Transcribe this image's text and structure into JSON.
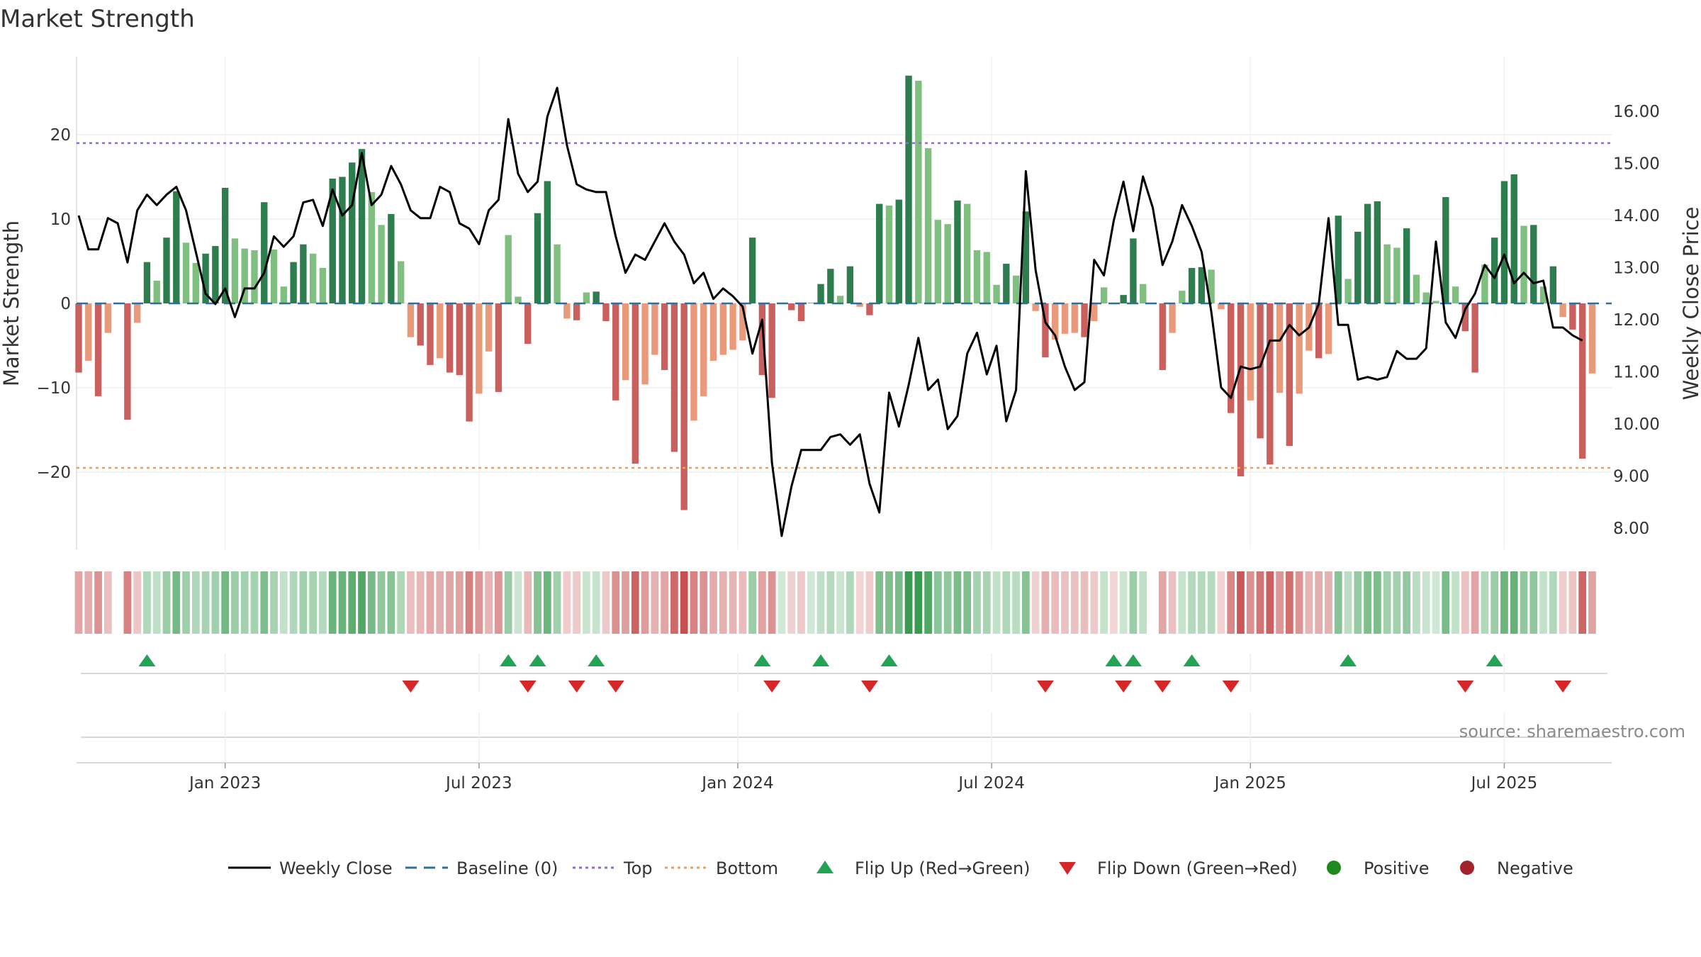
{
  "chart_data": {
    "type": "bar",
    "title": "Market Strength",
    "source": "source: sharemaestro.com",
    "left_axis": {
      "label": "Market Strength",
      "ticks": [
        20,
        10,
        0,
        -10,
        -20
      ],
      "tick_labels": [
        "20",
        "10",
        "0",
        "−10",
        "−20"
      ],
      "range": [
        -29,
        29
      ]
    },
    "right_axis": {
      "label": "Weekly Close Price",
      "ticks": [
        16,
        15,
        14,
        13,
        12,
        11,
        10,
        9,
        8
      ],
      "tick_labels": [
        "16.00",
        "15.00",
        "14.00",
        "13.00",
        "12.00",
        "11.00",
        "10.00",
        "9.00",
        "8.00"
      ],
      "range": [
        7.3,
        16.9
      ]
    },
    "x_axis": {
      "labels": [
        "Jan 2023",
        "Jul 2023",
        "Jan 2024",
        "Jul 2024",
        "Jan 2025",
        "Jul 2025"
      ],
      "label_weeks": [
        15,
        41,
        67.5,
        93.5,
        120,
        146
      ]
    },
    "levels": {
      "top": 19,
      "bottom": -19.5,
      "baseline": 0
    },
    "weeks": 158,
    "strength": [
      -8.2,
      -6.8,
      -11,
      -3.5,
      0,
      -13.8,
      -2.3,
      4.9,
      2.7,
      7.8,
      13.3,
      7.2,
      4.8,
      5.9,
      6.8,
      13.7,
      7.7,
      6.5,
      6.3,
      12,
      6.4,
      2,
      4.9,
      7,
      5.9,
      4.2,
      14.8,
      15,
      16.7,
      18.3,
      13.2,
      9.3,
      10.6,
      5,
      -4,
      -5,
      -7.3,
      -6.5,
      -8.2,
      -8.5,
      -14,
      -10.7,
      -5.7,
      -10.5,
      8.1,
      0.8,
      -4.8,
      10.7,
      14.5,
      7,
      -1.8,
      -2,
      1.3,
      1.4,
      -2.1,
      -11.5,
      -9.1,
      -19,
      -9.6,
      -6.1,
      -7.9,
      -17.6,
      -24.5,
      -13.9,
      -11,
      -6.8,
      -6.1,
      -5.5,
      -4.4,
      7.8,
      -8.5,
      -11.2,
      0.1,
      -0.8,
      -2.1,
      0.1,
      2.3,
      4.1,
      0.9,
      4.4,
      -0.4,
      -1.4,
      11.8,
      11.6,
      12.3,
      27,
      26.4,
      18.4,
      9.9,
      9.4,
      12.2,
      11.8,
      6.3,
      6.1,
      2.2,
      4.7,
      3.3,
      10.9,
      -0.9,
      -6.4,
      -4.3,
      -3.6,
      -3.5,
      -4,
      -2.1,
      1.9,
      -0.1,
      1,
      7.7,
      2.3,
      0,
      -7.9,
      -3.5,
      1.5,
      4.2,
      4.3,
      4,
      -0.7,
      -13,
      -20.5,
      -11.5,
      -16,
      -19.1,
      -10.6,
      -16.9,
      -10.7,
      -5.6,
      -6.5,
      -6,
      10.4,
      2.9,
      8.5,
      11.8,
      12.1,
      7,
      6.6,
      8.9,
      3.4,
      1.3,
      0.3,
      12.6,
      2,
      -3.3,
      -8.2,
      4.6,
      7.8,
      14.5,
      15.3,
      9.2,
      9.3,
      2,
      4.4,
      -1.6,
      -3.1,
      -18.4,
      -8.3
    ],
    "weekly_close": [
      14,
      13.35,
      13.35,
      13.95,
      13.85,
      13.1,
      14.1,
      14.4,
      14.2,
      14.4,
      14.55,
      14.1,
      13.3,
      12.5,
      12.3,
      12.6,
      12.05,
      12.6,
      12.6,
      12.9,
      13.6,
      13.4,
      13.6,
      14.25,
      14.3,
      13.8,
      14.5,
      14,
      14.2,
      15.2,
      14.2,
      14.4,
      14.95,
      14.6,
      14.1,
      13.95,
      13.95,
      14.55,
      14.45,
      13.85,
      13.75,
      13.45,
      14.1,
      14.3,
      15.85,
      14.8,
      14.45,
      14.65,
      15.9,
      16.45,
      15.35,
      14.6,
      14.5,
      14.45,
      14.45,
      13.6,
      12.9,
      13.25,
      13.15,
      13.5,
      13.85,
      13.5,
      13.25,
      12.7,
      12.9,
      12.4,
      12.6,
      12.45,
      12.25,
      11.35,
      12,
      9.25,
      7.85,
      8.8,
      9.5,
      9.5,
      9.5,
      9.75,
      9.8,
      9.6,
      9.8,
      8.85,
      8.3,
      10.6,
      9.95,
      10.75,
      11.65,
      10.65,
      10.85,
      9.9,
      10.15,
      11.35,
      11.75,
      10.95,
      11.5,
      10.05,
      10.65,
      14.85,
      12.95,
      11.95,
      11.7,
      11.1,
      10.65,
      10.8,
      13.15,
      12.85,
      13.9,
      14.65,
      13.7,
      14.75,
      14.15,
      13.05,
      13.5,
      14.2,
      13.8,
      13.3,
      12.15,
      10.7,
      10.5,
      11.1,
      11.05,
      11.1,
      11.6,
      11.6,
      11.9,
      11.7,
      11.85,
      12.3,
      13.95,
      11.9,
      11.9,
      10.85,
      10.9,
      10.85,
      10.9,
      11.4,
      11.25,
      11.25,
      11.45,
      13.5,
      11.95,
      11.65,
      12.2,
      12.5,
      13.05,
      12.8,
      13.25,
      12.7,
      12.9,
      12.7,
      12.75,
      11.85,
      11.85,
      11.7,
      11.6
    ],
    "flip_up": [
      7,
      44,
      47,
      53,
      70,
      76,
      83,
      106,
      108,
      114,
      130,
      145
    ],
    "flip_down": [
      34,
      46,
      51,
      55,
      71,
      81,
      99,
      107,
      111,
      118,
      142,
      152
    ],
    "legend": [
      {
        "label": "Weekly Close",
        "symbol": "solid-line",
        "color": "#000000"
      },
      {
        "label": "Baseline (0)",
        "symbol": "dashed-line",
        "color": "#2f6f9f"
      },
      {
        "label": "Top",
        "symbol": "dotted-line",
        "color": "#8e6bcf"
      },
      {
        "label": "Bottom",
        "symbol": "dotted-line",
        "color": "#e8a060"
      },
      {
        "label": "Flip Up (Red→Green)",
        "symbol": "triangle-up",
        "color": "#23a455"
      },
      {
        "label": "Flip Down (Green→Red)",
        "symbol": "triangle-down",
        "color": "#d62728"
      },
      {
        "label": "Positive",
        "symbol": "circle",
        "color": "#1e8a1e"
      },
      {
        "label": "Negative",
        "symbol": "circle",
        "color": "#a3232a"
      }
    ],
    "colors": {
      "pos_strong": "#2e7d4f",
      "pos_light": "#7fbf7f",
      "neg_strong": "#c9605e",
      "neg_light": "#e89a7a",
      "top_line": "#8e6bcf",
      "bottom_line": "#e8a060",
      "baseline": "#2f6f9f",
      "close_line": "#000000",
      "flip_up": "#23a455",
      "flip_down": "#d62728",
      "grid": "#eeeeee"
    }
  }
}
